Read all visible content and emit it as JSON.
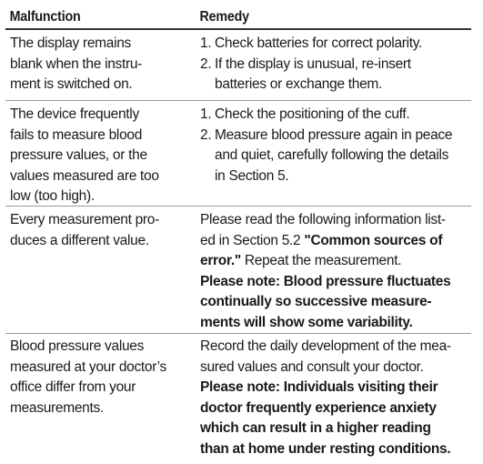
{
  "header": {
    "malfunction": "Malfunction",
    "remedy": "Remedy"
  },
  "rows": [
    {
      "malfunction": [
        "The display remains",
        "blank when the instru-",
        "ment is switched on."
      ],
      "remedy_steps": [
        {
          "num": "1.",
          "lines": [
            "Check batteries for correct polarity."
          ]
        },
        {
          "num": "2.",
          "lines": [
            "If the display is unusual, re-insert",
            "batteries or exchange them."
          ]
        }
      ]
    },
    {
      "malfunction": [
        "The device frequently",
        "fails to measure blood",
        "pressure values, or the",
        "values measured are too",
        "low (too high)."
      ],
      "remedy_steps": [
        {
          "num": "1.",
          "lines": [
            "Check the positioning of the cuff."
          ]
        },
        {
          "num": "2.",
          "lines": [
            "Measure blood pressure again in peace",
            "and quiet, carefully following the details",
            "in Section 5."
          ]
        }
      ]
    },
    {
      "malfunction": [
        "Every measurement pro-",
        "duces a different value."
      ],
      "remedy": {
        "line1": "Please read the following information list-",
        "line2_prefix": "ed in Section 5.2 ",
        "line2_bold": "\"Common sources of",
        "line3_bold": "error.\"",
        "line3_rest": " Repeat the measurement.",
        "note": [
          "Please note: Blood pressure fluctuates",
          "continually so successive measure-",
          "ments will show some variability."
        ]
      }
    },
    {
      "malfunction": [
        "Blood pressure values",
        "measured at your doctor’s",
        "office differ from your",
        "measurements."
      ],
      "remedy": {
        "lines": [
          "Record the daily development of the mea-",
          "sured values and consult your doctor."
        ],
        "note": [
          "Please note: Individuals visiting their",
          "doctor frequently experience anxiety",
          "which can result in a higher reading",
          "than at home under resting conditions."
        ]
      }
    }
  ]
}
